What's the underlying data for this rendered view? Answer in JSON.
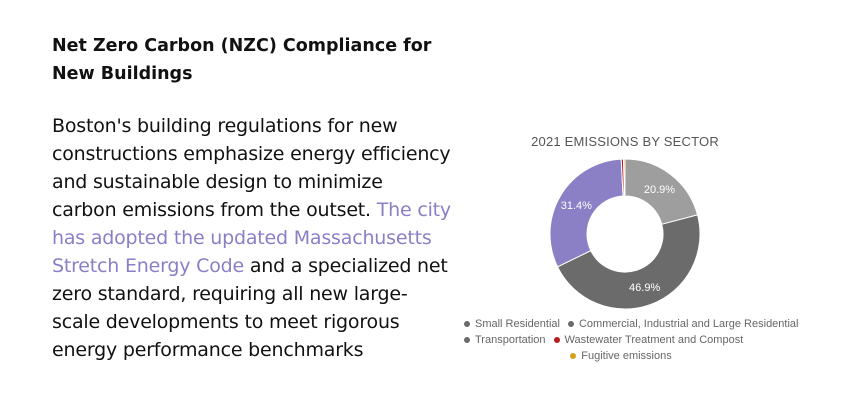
{
  "article": {
    "heading": "Net Zero Carbon (NZC) Compliance for New Buildings",
    "body_part1": "Boston's building regulations for new constructions emphasize energy efficiency and sustainable design to minimize carbon emissions from the outset. ",
    "body_highlight": "The city has adopted the updated Massachusetts Stretch Energy Code",
    "body_part2": " and a specialized net zero standard, requiring all new large-scale developments to meet rigorous energy performance benchmarks"
  },
  "colors": {
    "highlight": "#8a7fc7",
    "small_residential": "#9e9e9e",
    "commercial": "#6b6b6b",
    "transportation": "#8b7fc6",
    "wastewater": "#b71c1c",
    "fugitive": "#d4a21a"
  },
  "chart_data": {
    "type": "pie",
    "title": "2021 EMISSIONS BY SECTOR",
    "legend_position": "bottom",
    "series": [
      {
        "name": "Small Residential",
        "value": 20.9,
        "label": "20.9%",
        "color": "#9e9e9e"
      },
      {
        "name": "Commercial, Industrial and Large Residential",
        "value": 46.9,
        "label": "46.9%",
        "color": "#6b6b6b"
      },
      {
        "name": "Transportation",
        "value": 31.4,
        "label": "31.4%",
        "color": "#8b7fc6"
      },
      {
        "name": "Wastewater Treatment and Compost",
        "value": 0.5,
        "label": "",
        "color": "#b71c1c"
      },
      {
        "name": "Fugitive emissions",
        "value": 0.3,
        "label": "",
        "color": "#d4a21a"
      }
    ]
  }
}
